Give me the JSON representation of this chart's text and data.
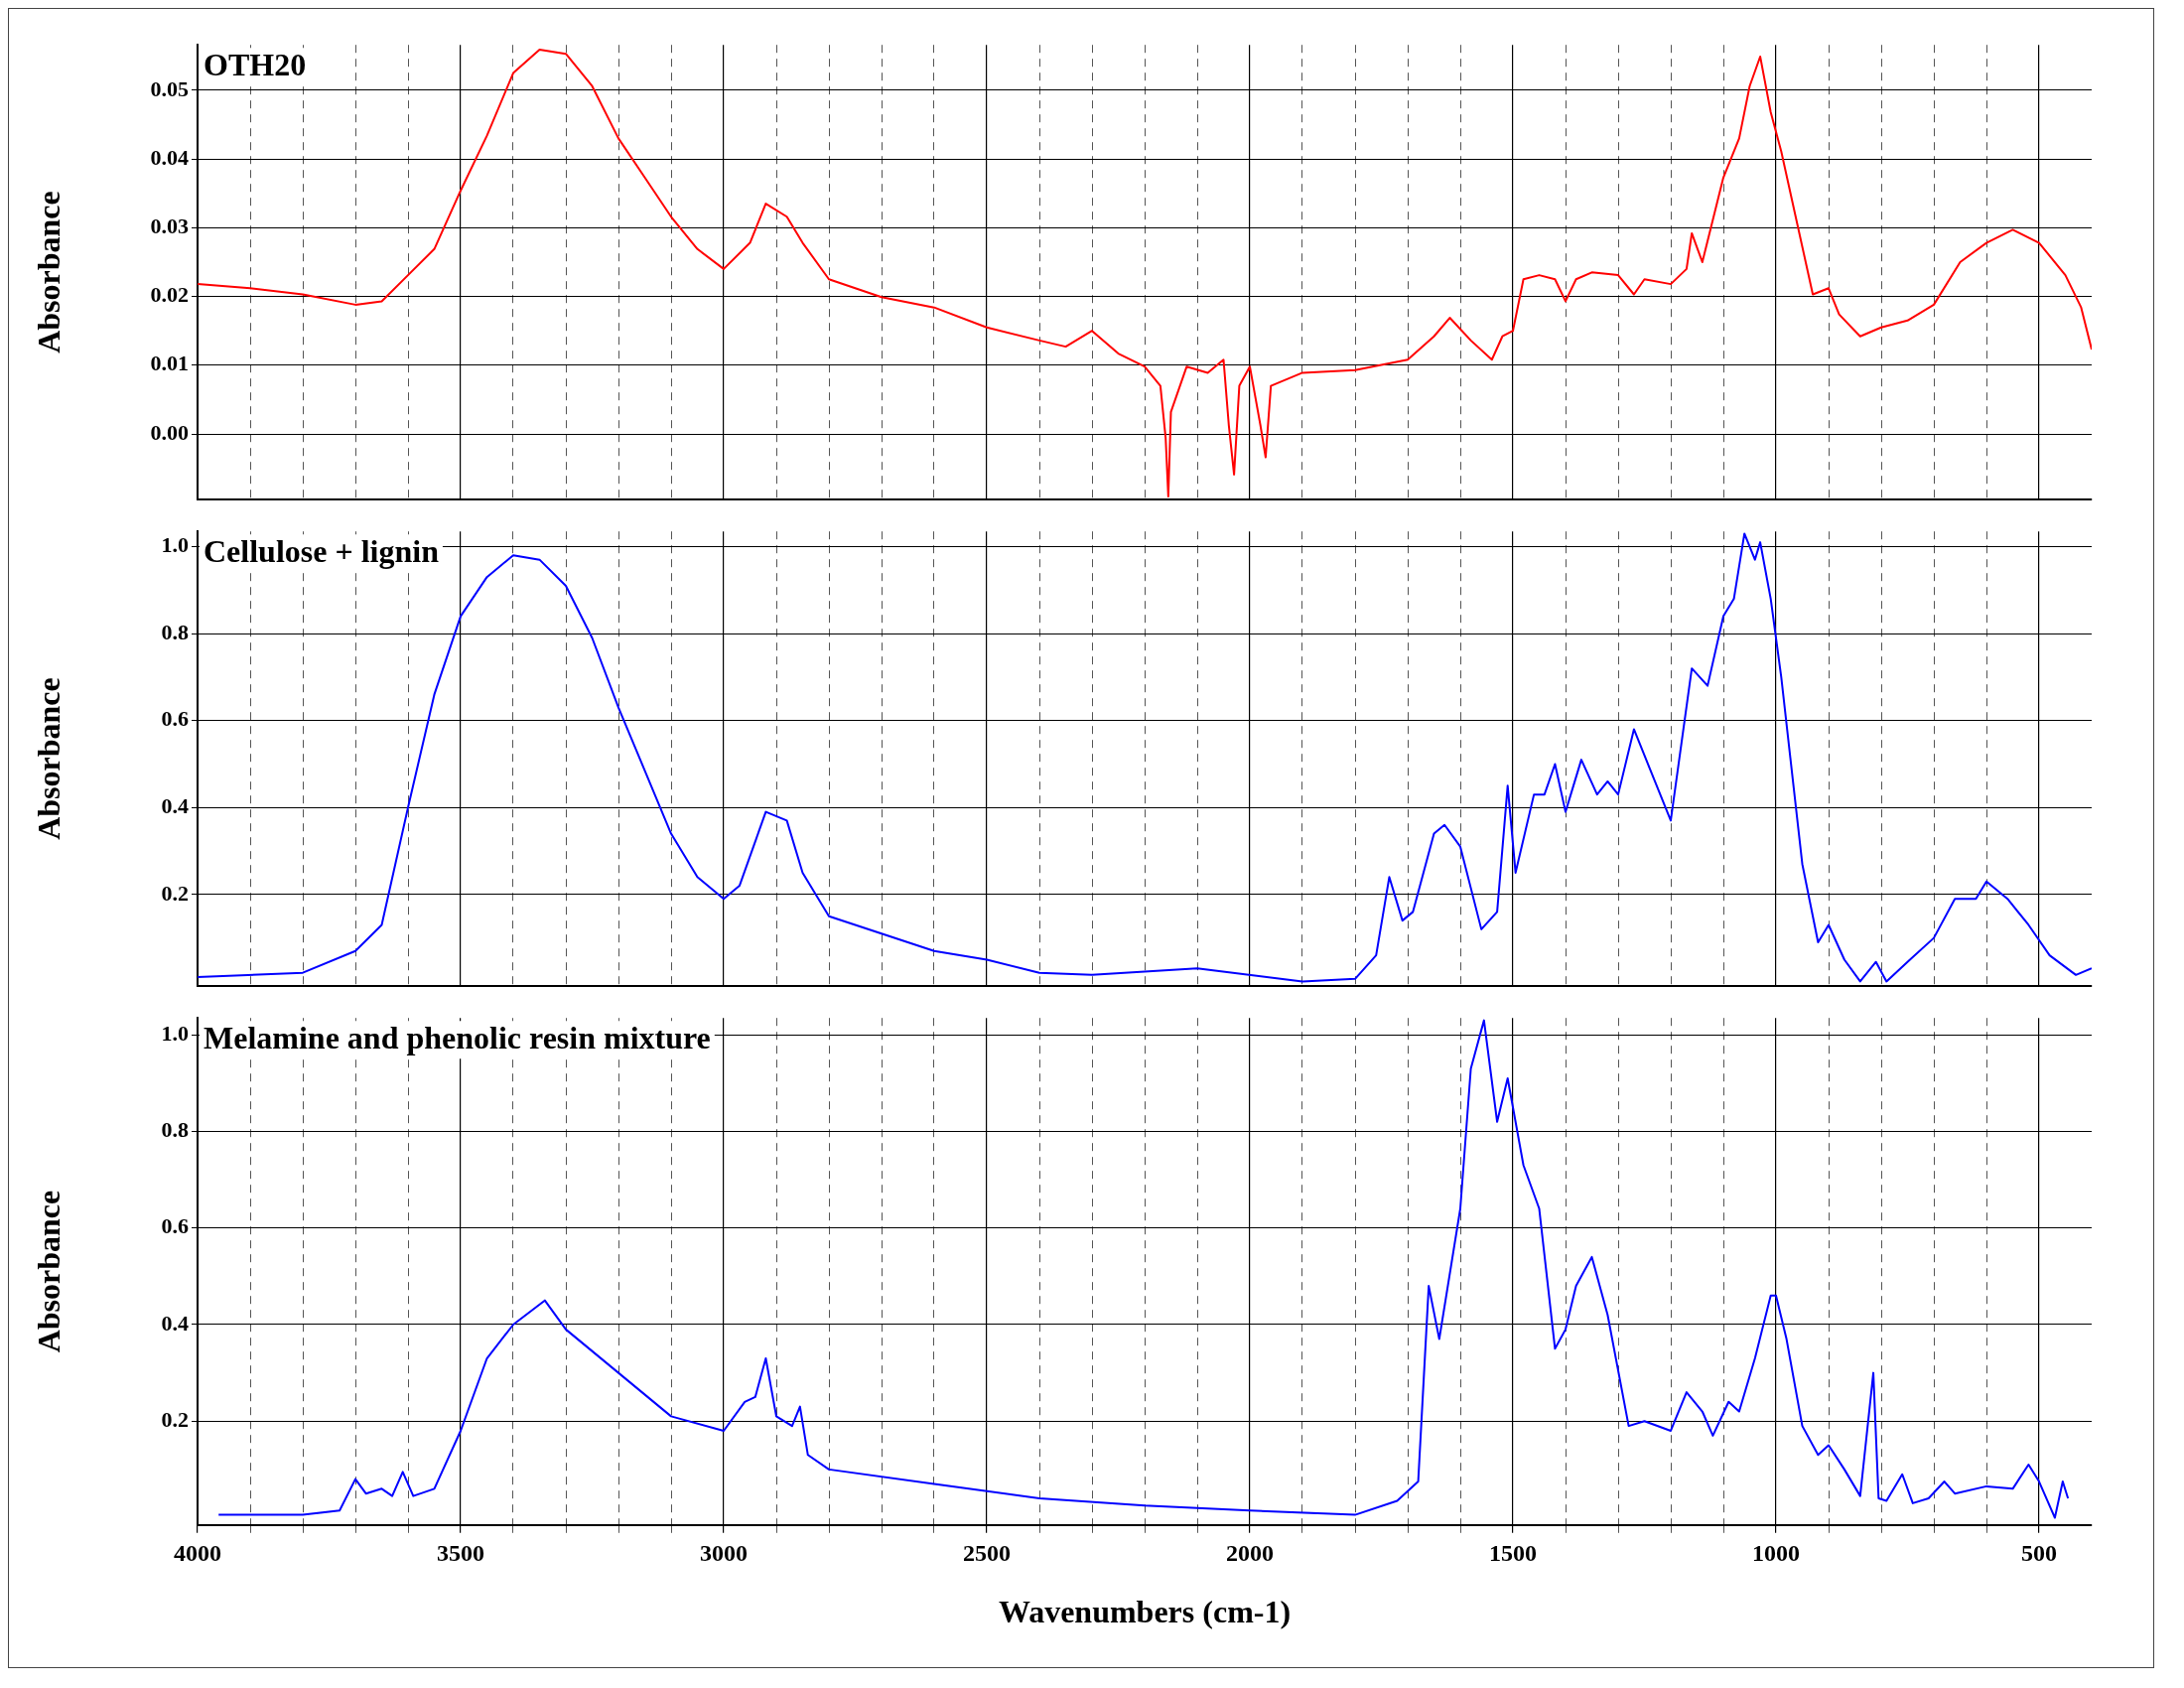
{
  "chart_data": [
    {
      "type": "line",
      "title": "OTH20",
      "ylabel": "Absorbance",
      "xlim": [
        4000,
        400
      ],
      "xticks": [
        {
          "value": 4000,
          "label": null
        },
        {
          "value": 3900,
          "label": null
        },
        {
          "value": 3800,
          "label": null
        },
        {
          "value": 3700,
          "label": null
        },
        {
          "value": 3600,
          "label": null
        },
        {
          "value": 3500,
          "label": null
        },
        {
          "value": 3400,
          "label": null
        },
        {
          "value": 3300,
          "label": null
        },
        {
          "value": 3200,
          "label": null
        },
        {
          "value": 3100,
          "label": null
        },
        {
          "value": 3000,
          "label": null
        },
        {
          "value": 2900,
          "label": null
        },
        {
          "value": 2800,
          "label": null
        },
        {
          "value": 2700,
          "label": null
        },
        {
          "value": 2600,
          "label": null
        },
        {
          "value": 2500,
          "label": null
        },
        {
          "value": 2400,
          "label": null
        },
        {
          "value": 2300,
          "label": null
        },
        {
          "value": 2200,
          "label": null
        },
        {
          "value": 2100,
          "label": null
        },
        {
          "value": 2000,
          "label": null
        },
        {
          "value": 1900,
          "label": null
        },
        {
          "value": 1800,
          "label": null
        },
        {
          "value": 1700,
          "label": null
        },
        {
          "value": 1600,
          "label": null
        },
        {
          "value": 1500,
          "label": null
        },
        {
          "value": 1400,
          "label": null
        },
        {
          "value": 1300,
          "label": null
        },
        {
          "value": 1200,
          "label": null
        },
        {
          "value": 1100,
          "label": null
        },
        {
          "value": 1000,
          "label": null
        },
        {
          "value": 900,
          "label": null
        },
        {
          "value": 800,
          "label": null
        },
        {
          "value": 700,
          "label": null
        },
        {
          "value": 600,
          "label": null
        },
        {
          "value": 500,
          "label": null
        }
      ],
      "ylim": [
        -0.0095,
        0.0566
      ],
      "yticks": [
        {
          "value": 0,
          "label": "0.00"
        },
        {
          "value": 0.01,
          "label": "0.01"
        },
        {
          "value": 0.02,
          "label": "0.02"
        },
        {
          "value": 0.03,
          "label": "0.03"
        },
        {
          "value": 0.04,
          "label": "0.04"
        },
        {
          "value": 0.05,
          "label": "0.05"
        }
      ],
      "grid": true,
      "tick_labels": "y",
      "marker": "none",
      "series": [
        {
          "color": "#ff0000",
          "x": [
            4000,
            3900,
            3800,
            3700,
            3650,
            3600,
            3550,
            3500,
            3450,
            3400,
            3350,
            3300,
            3250,
            3200,
            3150,
            3100,
            3050,
            3000,
            2950,
            2920,
            2880,
            2850,
            2800,
            2700,
            2600,
            2500,
            2400,
            2350,
            2300,
            2250,
            2200,
            2170,
            2160,
            2155,
            2150,
            2120,
            2080,
            2050,
            2040,
            2030,
            2020,
            2000,
            1980,
            1970,
            1960,
            1900,
            1800,
            1700,
            1650,
            1620,
            1580,
            1540,
            1520,
            1500,
            1480,
            1450,
            1420,
            1400,
            1380,
            1350,
            1300,
            1270,
            1250,
            1200,
            1170,
            1160,
            1140,
            1100,
            1070,
            1050,
            1030,
            1010,
            990,
            960,
            930,
            900,
            880,
            840,
            800,
            750,
            700,
            650,
            600,
            550,
            500,
            450,
            420,
            400
          ],
          "values": [
            0.0218,
            0.0212,
            0.0203,
            0.0188,
            0.0193,
            0.0231,
            0.0269,
            0.0354,
            0.0434,
            0.0525,
            0.0559,
            0.0553,
            0.0506,
            0.043,
            0.0373,
            0.0316,
            0.0269,
            0.024,
            0.0278,
            0.0335,
            0.0316,
            0.0278,
            0.0225,
            0.0199,
            0.0184,
            0.0155,
            0.0136,
            0.0127,
            0.015,
            0.0117,
            0.0098,
            0.007,
            -0.0006,
            -0.0091,
            0.0032,
            0.0098,
            0.0089,
            0.0108,
            0.0013,
            -0.0059,
            0.007,
            0.0098,
            0.0013,
            -0.0034,
            0.007,
            0.0089,
            0.0093,
            0.0108,
            0.0142,
            0.0169,
            0.0136,
            0.0108,
            0.0142,
            0.015,
            0.0225,
            0.0231,
            0.0225,
            0.0193,
            0.0225,
            0.0235,
            0.0231,
            0.0203,
            0.0225,
            0.0218,
            0.024,
            0.0292,
            0.025,
            0.0373,
            0.043,
            0.0506,
            0.0549,
            0.0468,
            0.0411,
            0.0307,
            0.0203,
            0.0212,
            0.0174,
            0.0142,
            0.0155,
            0.0165,
            0.0188,
            0.025,
            0.0278,
            0.0297,
            0.0278,
            0.0231,
            0.0184,
            0.0123
          ]
        }
      ]
    },
    {
      "type": "line",
      "title": "Cellulose + lignin",
      "ylabel": "Absorbance",
      "xlim": [
        4000,
        400
      ],
      "xticks": [
        {
          "value": 4000,
          "label": null
        },
        {
          "value": 3900,
          "label": null
        },
        {
          "value": 3800,
          "label": null
        },
        {
          "value": 3700,
          "label": null
        },
        {
          "value": 3600,
          "label": null
        },
        {
          "value": 3500,
          "label": null
        },
        {
          "value": 3400,
          "label": null
        },
        {
          "value": 3300,
          "label": null
        },
        {
          "value": 3200,
          "label": null
        },
        {
          "value": 3100,
          "label": null
        },
        {
          "value": 3000,
          "label": null
        },
        {
          "value": 2900,
          "label": null
        },
        {
          "value": 2800,
          "label": null
        },
        {
          "value": 2700,
          "label": null
        },
        {
          "value": 2600,
          "label": null
        },
        {
          "value": 2500,
          "label": null
        },
        {
          "value": 2400,
          "label": null
        },
        {
          "value": 2300,
          "label": null
        },
        {
          "value": 2200,
          "label": null
        },
        {
          "value": 2100,
          "label": null
        },
        {
          "value": 2000,
          "label": null
        },
        {
          "value": 1900,
          "label": null
        },
        {
          "value": 1800,
          "label": null
        },
        {
          "value": 1700,
          "label": null
        },
        {
          "value": 1600,
          "label": null
        },
        {
          "value": 1500,
          "label": null
        },
        {
          "value": 1400,
          "label": null
        },
        {
          "value": 1300,
          "label": null
        },
        {
          "value": 1200,
          "label": null
        },
        {
          "value": 1100,
          "label": null
        },
        {
          "value": 1000,
          "label": null
        },
        {
          "value": 900,
          "label": null
        },
        {
          "value": 800,
          "label": null
        },
        {
          "value": 700,
          "label": null
        },
        {
          "value": 600,
          "label": null
        },
        {
          "value": 500,
          "label": null
        }
      ],
      "ylim": [
        -0.01,
        1.035
      ],
      "yticks": [
        0.2,
        0.4,
        0.6,
        0.8,
        {
          "value": 1,
          "label": "1.0"
        }
      ],
      "grid": true,
      "tick_labels": "y",
      "marker": "none",
      "series": [
        {
          "color": "#0000ff",
          "x": [
            4000,
            3800,
            3700,
            3650,
            3600,
            3550,
            3500,
            3450,
            3400,
            3350,
            3300,
            3250,
            3200,
            3100,
            3050,
            3000,
            2970,
            2920,
            2880,
            2850,
            2800,
            2700,
            2600,
            2500,
            2400,
            2300,
            2100,
            1900,
            1800,
            1760,
            1735,
            1710,
            1690,
            1650,
            1630,
            1600,
            1560,
            1530,
            1510,
            1495,
            1460,
            1440,
            1420,
            1400,
            1370,
            1340,
            1320,
            1300,
            1270,
            1240,
            1200,
            1160,
            1130,
            1100,
            1080,
            1060,
            1040,
            1030,
            1010,
            990,
            950,
            920,
            900,
            870,
            840,
            810,
            790,
            750,
            700,
            660,
            620,
            600,
            560,
            520,
            480,
            430,
            400
          ],
          "values": [
            0.01,
            0.02,
            0.07,
            0.13,
            0.4,
            0.66,
            0.84,
            0.93,
            0.98,
            0.97,
            0.91,
            0.79,
            0.63,
            0.34,
            0.24,
            0.19,
            0.22,
            0.39,
            0.37,
            0.25,
            0.15,
            0.11,
            0.07,
            0.05,
            0.02,
            0.015,
            0.03,
            0.0,
            0.006,
            0.06,
            0.24,
            0.14,
            0.16,
            0.34,
            0.36,
            0.31,
            0.12,
            0.16,
            0.45,
            0.25,
            0.43,
            0.43,
            0.5,
            0.39,
            0.51,
            0.43,
            0.46,
            0.43,
            0.58,
            0.49,
            0.37,
            0.72,
            0.68,
            0.84,
            0.88,
            1.03,
            0.97,
            1.01,
            0.88,
            0.7,
            0.27,
            0.09,
            0.13,
            0.05,
            0.0,
            0.045,
            0.0,
            0.045,
            0.1,
            0.19,
            0.19,
            0.23,
            0.19,
            0.13,
            0.06,
            0.015,
            0.03
          ]
        }
      ]
    },
    {
      "type": "line",
      "title": "Melamine and phenolic resin mixture",
      "xlabel": "Wavenumbers (cm-1)",
      "ylabel": "Absorbance",
      "xlim": [
        4000,
        400
      ],
      "xticks": [
        4000,
        {
          "value": 3900,
          "label": null
        },
        {
          "value": 3800,
          "label": null
        },
        {
          "value": 3700,
          "label": null
        },
        {
          "value": 3600,
          "label": null
        },
        3500,
        {
          "value": 3400,
          "label": null
        },
        {
          "value": 3300,
          "label": null
        },
        {
          "value": 3200,
          "label": null
        },
        {
          "value": 3100,
          "label": null
        },
        3000,
        {
          "value": 2900,
          "label": null
        },
        {
          "value": 2800,
          "label": null
        },
        {
          "value": 2700,
          "label": null
        },
        {
          "value": 2600,
          "label": null
        },
        2500,
        {
          "value": 2400,
          "label": null
        },
        {
          "value": 2300,
          "label": null
        },
        {
          "value": 2200,
          "label": null
        },
        {
          "value": 2100,
          "label": null
        },
        2000,
        {
          "value": 1900,
          "label": null
        },
        {
          "value": 1800,
          "label": null
        },
        {
          "value": 1700,
          "label": null
        },
        {
          "value": 1600,
          "label": null
        },
        1500,
        {
          "value": 1400,
          "label": null
        },
        {
          "value": 1300,
          "label": null
        },
        {
          "value": 1200,
          "label": null
        },
        {
          "value": 1100,
          "label": null
        },
        1000,
        {
          "value": 900,
          "label": null
        },
        {
          "value": 800,
          "label": null
        },
        {
          "value": 700,
          "label": null
        },
        {
          "value": 600,
          "label": null
        },
        500
      ],
      "ylim": [
        -0.015,
        1.035
      ],
      "yticks": [
        0.2,
        0.4,
        0.6,
        0.8,
        {
          "value": 1,
          "label": "1.0"
        }
      ],
      "grid": true,
      "marker": "none",
      "series": [
        {
          "color": "#0000ff",
          "x": [
            3960,
            3800,
            3730,
            3700,
            3680,
            3650,
            3630,
            3610,
            3590,
            3550,
            3500,
            3450,
            3400,
            3340,
            3300,
            3200,
            3100,
            3000,
            2960,
            2940,
            2920,
            2900,
            2870,
            2855,
            2840,
            2800,
            2600,
            2400,
            2200,
            2000,
            1800,
            1720,
            1680,
            1660,
            1640,
            1600,
            1580,
            1555,
            1530,
            1510,
            1480,
            1450,
            1420,
            1400,
            1380,
            1350,
            1320,
            1280,
            1250,
            1200,
            1170,
            1140,
            1120,
            1090,
            1070,
            1040,
            1010,
            1000,
            980,
            950,
            920,
            900,
            870,
            840,
            815,
            805,
            790,
            760,
            740,
            710,
            680,
            660,
            600,
            550,
            520,
            500,
            470,
            455,
            445
          ],
          "values": [
            0.006,
            0.006,
            0.015,
            0.08,
            0.05,
            0.06,
            0.045,
            0.095,
            0.045,
            0.06,
            0.18,
            0.33,
            0.4,
            0.45,
            0.39,
            0.3,
            0.21,
            0.18,
            0.24,
            0.25,
            0.33,
            0.21,
            0.19,
            0.23,
            0.13,
            0.1,
            0.07,
            0.04,
            0.025,
            0.015,
            0.006,
            0.035,
            0.075,
            0.48,
            0.37,
            0.64,
            0.93,
            1.03,
            0.82,
            0.91,
            0.73,
            0.64,
            0.35,
            0.39,
            0.48,
            0.54,
            0.42,
            0.19,
            0.2,
            0.18,
            0.26,
            0.22,
            0.17,
            0.24,
            0.22,
            0.33,
            0.46,
            0.46,
            0.37,
            0.19,
            0.13,
            0.15,
            0.1,
            0.045,
            0.3,
            0.04,
            0.035,
            0.09,
            0.03,
            0.04,
            0.075,
            0.05,
            0.065,
            0.06,
            0.11,
            0.075,
            0.0,
            0.075,
            0.04
          ]
        }
      ]
    }
  ]
}
